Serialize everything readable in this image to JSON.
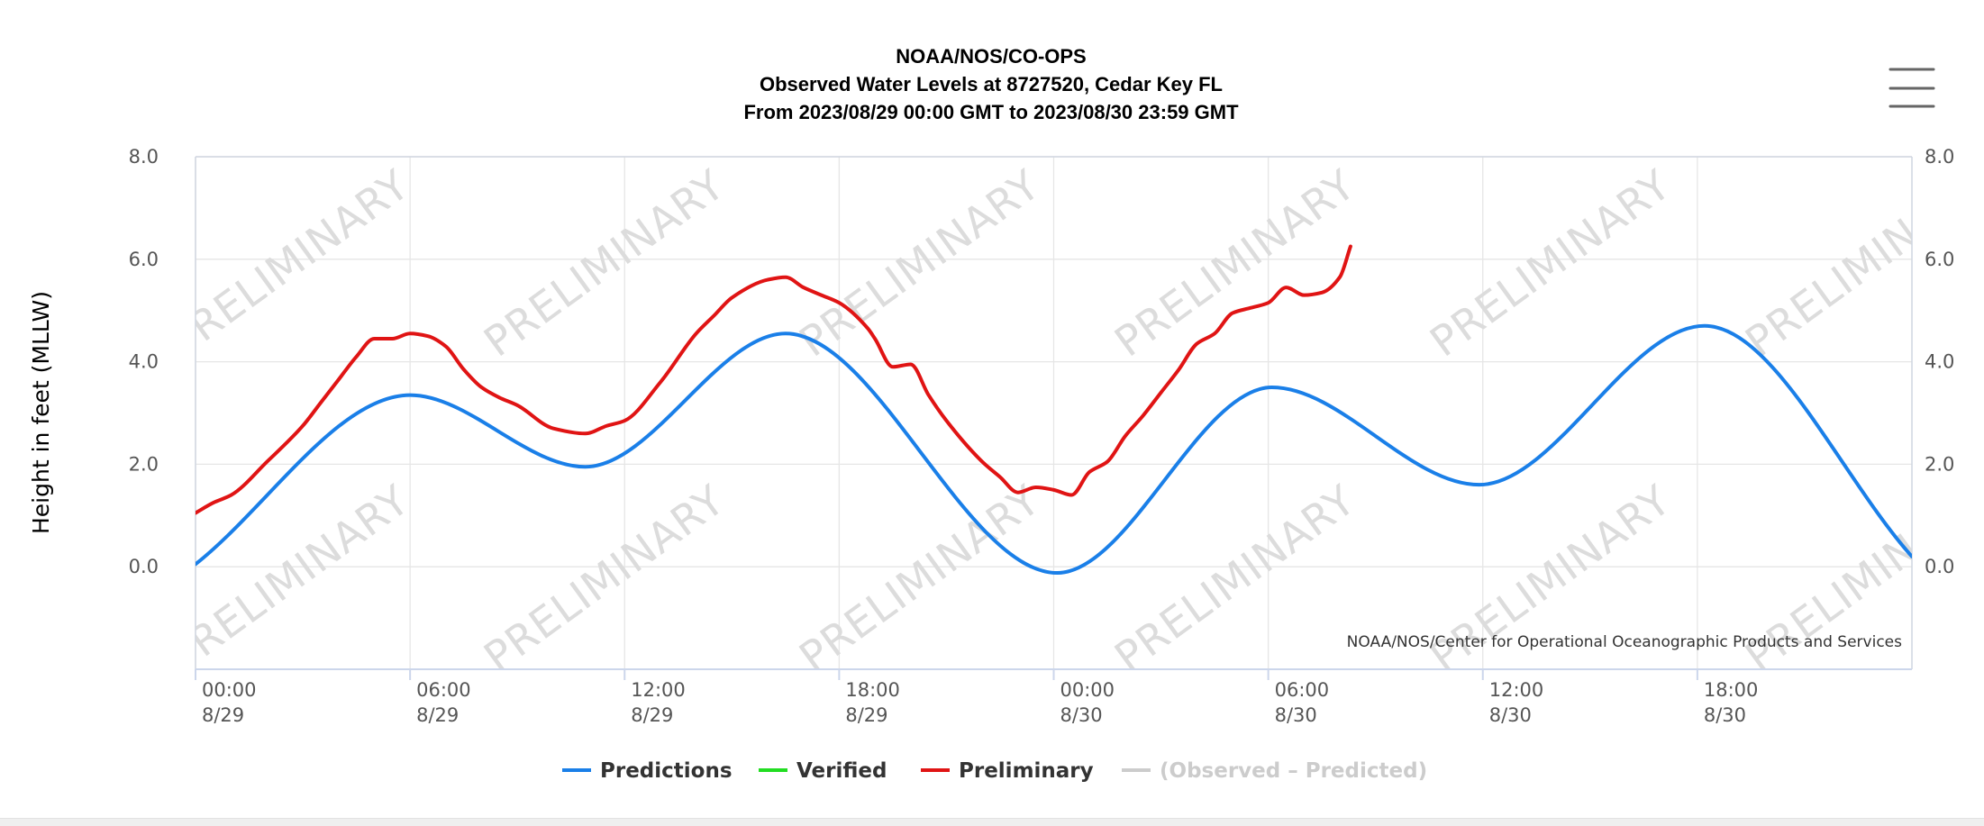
{
  "chart_data": {
    "type": "line",
    "title_lines": [
      "NOAA/NOS/CO-OPS",
      "Observed Water Levels at 8727520, Cedar Key FL",
      "From 2023/08/29 00:00 GMT to 2023/08/30 23:59 GMT"
    ],
    "ylabel": "Height in feet (MLLW)",
    "ylim": [
      -2.0,
      8.0
    ],
    "y_ticks": [
      "8.0",
      "6.0",
      "4.0",
      "2.0",
      "0.0"
    ],
    "y_tick_values": [
      8,
      6,
      4,
      2,
      0
    ],
    "x_ticks": [
      {
        "time": "00:00",
        "date": "8/29",
        "hour": 0
      },
      {
        "time": "06:00",
        "date": "8/29",
        "hour": 6
      },
      {
        "time": "12:00",
        "date": "8/29",
        "hour": 12
      },
      {
        "time": "18:00",
        "date": "8/29",
        "hour": 18
      },
      {
        "time": "00:00",
        "date": "8/30",
        "hour": 24
      },
      {
        "time": "06:00",
        "date": "8/30",
        "hour": 30
      },
      {
        "time": "12:00",
        "date": "8/30",
        "hour": 36
      },
      {
        "time": "18:00",
        "date": "8/30",
        "hour": 42
      }
    ],
    "xlim_hours": [
      0,
      48
    ],
    "credit": "NOAA/NOS/Center for Operational Oceanographic Products and Services",
    "watermark": "PRELIMINARY",
    "grid": true,
    "legend_position": "bottom-center",
    "legend": [
      {
        "name": "Predictions",
        "color": "#1a7fe8"
      },
      {
        "name": "Verified",
        "color": "#22dd22"
      },
      {
        "name": "Preliminary",
        "color": "#e01414"
      },
      {
        "name": "(Observed – Predicted)",
        "color": "#cccccc",
        "disabled": true
      }
    ],
    "series": [
      {
        "name": "Predictions",
        "color": "#1a7fe8",
        "x_hours": [
          0,
          6,
          10.9,
          16.5,
          24.1,
          30.1,
          35.9,
          42.2,
          48
        ],
        "values": [
          0.05,
          3.35,
          1.95,
          4.55,
          -0.12,
          3.5,
          1.6,
          4.7,
          0.2
        ]
      },
      {
        "name": "Preliminary",
        "color": "#e01414",
        "x_hours": [
          0,
          0.5,
          1,
          2,
          3,
          3.5,
          4,
          4.5,
          5,
          5.5,
          6,
          6.5,
          7,
          7.5,
          8,
          8.5,
          9,
          10,
          10.9,
          11.5,
          12,
          13,
          14,
          14.5,
          15,
          16,
          16.5,
          17,
          17.5,
          18,
          18.8,
          19,
          19.5,
          20,
          20.5,
          21,
          22,
          22.5,
          23,
          23.5,
          24,
          24.5,
          25,
          25.5,
          26,
          26.5,
          27,
          27.5,
          28,
          28.5,
          29,
          29.5,
          30,
          30.5,
          31,
          31.5,
          32,
          32.3
        ],
        "values": [
          1.05,
          1.25,
          1.4,
          2.05,
          2.75,
          3.2,
          3.65,
          4.1,
          4.45,
          4.45,
          4.55,
          4.5,
          4.3,
          3.85,
          3.5,
          3.3,
          3.15,
          2.7,
          2.6,
          2.75,
          2.85,
          3.6,
          4.55,
          4.9,
          5.25,
          5.6,
          5.65,
          5.45,
          5.3,
          5.15,
          4.65,
          4.45,
          3.9,
          3.95,
          3.35,
          2.85,
          2.05,
          1.75,
          1.45,
          1.55,
          1.5,
          1.4,
          1.85,
          2.05,
          2.55,
          2.95,
          3.4,
          3.85,
          4.35,
          4.55,
          4.95,
          5.05,
          5.15,
          5.45,
          5.3,
          5.35,
          5.65,
          6.25
        ]
      }
    ]
  }
}
